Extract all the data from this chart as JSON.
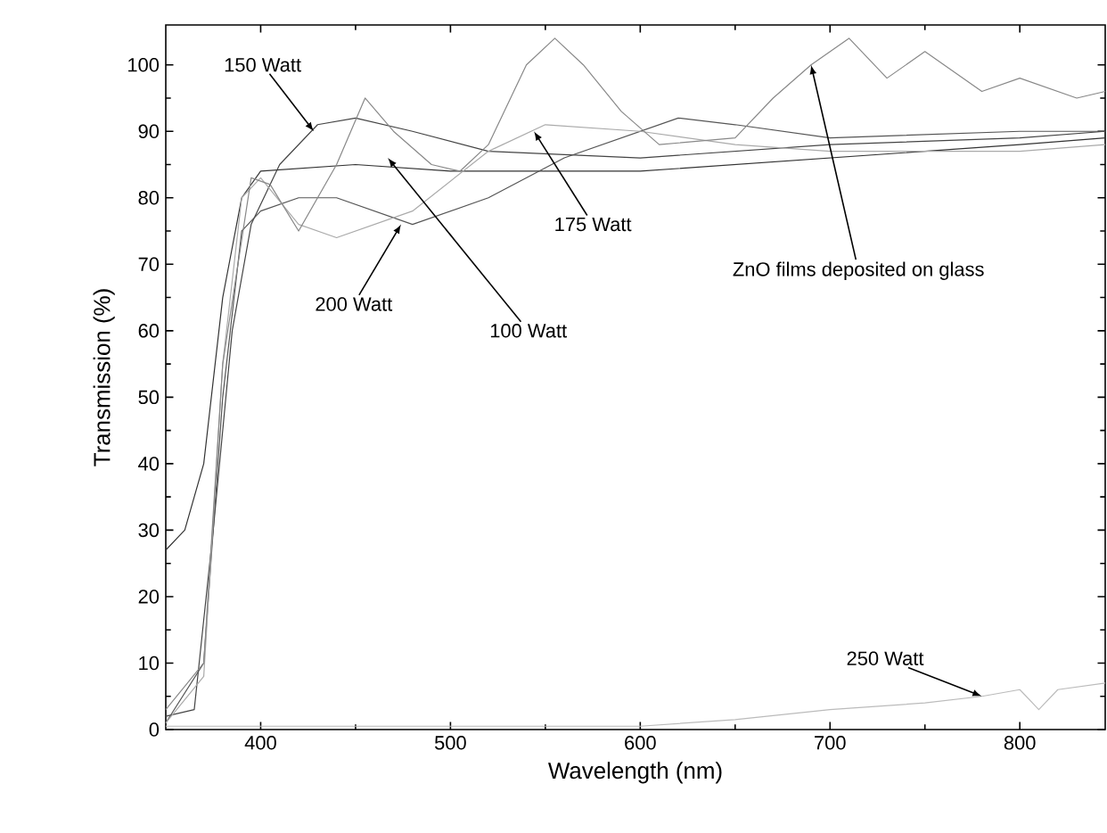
{
  "chart_data": {
    "type": "line",
    "xlabel": "Wavelength (nm)",
    "ylabel": "Transmission (%)",
    "xlim": [
      350,
      845
    ],
    "ylim": [
      0,
      106
    ],
    "xticks": [
      400,
      500,
      600,
      700,
      800
    ],
    "yticks": [
      0,
      10,
      20,
      30,
      40,
      50,
      60,
      70,
      80,
      90,
      100
    ],
    "grid": false,
    "marker": "none",
    "line_style": "solid",
    "series": [
      {
        "color": "#333333",
        "x": [
          350,
          360,
          370,
          380,
          390,
          400,
          450,
          500,
          600,
          700,
          800,
          845
        ],
        "values": [
          27,
          30,
          40,
          65,
          80,
          84,
          85,
          84,
          84,
          86,
          88,
          89
        ]
      },
      {
        "color": "#444444",
        "x": [
          350,
          365,
          375,
          385,
          395,
          410,
          430,
          450,
          480,
          520,
          600,
          700,
          800,
          845
        ],
        "values": [
          2,
          3,
          30,
          60,
          76,
          85,
          91,
          92,
          90,
          87,
          86,
          88,
          89,
          90
        ]
      },
      {
        "color": "#555555",
        "x": [
          350,
          370,
          380,
          390,
          400,
          420,
          440,
          480,
          520,
          560,
          600,
          620,
          650,
          700,
          800,
          845
        ],
        "values": [
          1,
          10,
          50,
          75,
          78,
          80,
          80,
          76,
          80,
          86,
          90,
          92,
          91,
          89,
          90,
          90
        ]
      },
      {
        "color": "#aaaaaa",
        "x": [
          350,
          370,
          380,
          390,
          400,
          420,
          440,
          480,
          520,
          550,
          600,
          650,
          700,
          800,
          845
        ],
        "values": [
          1,
          8,
          55,
          80,
          83,
          76,
          74,
          78,
          87,
          91,
          90,
          88,
          87,
          87,
          88
        ]
      },
      {
        "color": "#888888",
        "x": [
          350,
          370,
          380,
          395,
          405,
          420,
          440,
          455,
          470,
          490,
          505,
          520,
          540,
          555,
          570,
          590,
          610,
          650,
          670,
          690,
          710,
          730,
          750,
          780,
          800,
          830,
          845
        ],
        "values": [
          3,
          10,
          55,
          83,
          82,
          75,
          85,
          95,
          90,
          85,
          84,
          88,
          100,
          104,
          100,
          93,
          88,
          89,
          95,
          100,
          104,
          98,
          102,
          96,
          98,
          95,
          96
        ]
      },
      {
        "color": "#bbbbbb",
        "x": [
          350,
          600,
          650,
          700,
          750,
          780,
          800,
          810,
          820,
          845
        ],
        "values": [
          0.5,
          0.5,
          1.5,
          3,
          4,
          5,
          6,
          3,
          6,
          7
        ]
      }
    ],
    "annotations": [
      {
        "text": "150 Watt",
        "x": 428,
        "y": 90
      },
      {
        "text": "175 Watt",
        "x": 544,
        "y": 90
      },
      {
        "text": "200 Watt",
        "x": 474,
        "y": 76
      },
      {
        "text": "100 Watt",
        "x": 467,
        "y": 86
      },
      {
        "text": "ZnO films deposited on glass",
        "x": 690,
        "y": 100
      },
      {
        "text": "250 Watt",
        "x": 780,
        "y": 5
      }
    ]
  }
}
